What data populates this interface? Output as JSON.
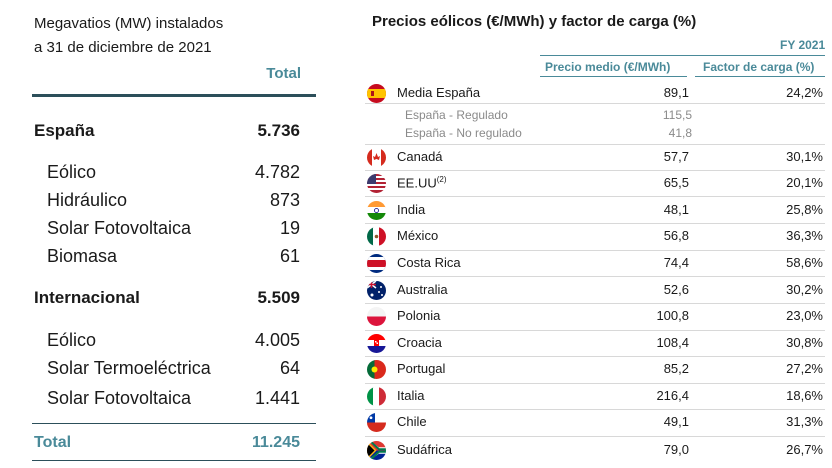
{
  "left_table": {
    "title_line1": "Megavatios (MW) instalados",
    "title_line2": "a 31 de diciembre de 2021",
    "column_header": "Total",
    "rows": [
      {
        "label": "España",
        "value": "5.736",
        "bold": true
      },
      {
        "label": "Eólico",
        "value": "4.782"
      },
      {
        "label": "Hidráulico",
        "value": "873"
      },
      {
        "label": "Solar Fotovoltaica",
        "value": "19"
      },
      {
        "label": "Biomasa",
        "value": "61"
      },
      {
        "label": "Internacional",
        "value": "5.509",
        "bold": true
      },
      {
        "label": "Eólico",
        "value": "4.005"
      },
      {
        "label": "Solar Termoeléctrica",
        "value": "64"
      },
      {
        "label": "Solar Fotovoltaica",
        "value": "1.441"
      }
    ],
    "total_label": "Total",
    "total_value": "11.245"
  },
  "right_table": {
    "title": "Precios eólicos (€/MWh) y factor de carga (%)",
    "period": "FY 2021",
    "col_price": "Precio medio (€/MWh)",
    "col_load": "Factor de carga (%)",
    "spain": {
      "name": "Media España",
      "price": "89,1",
      "load": "24,2%"
    },
    "spain_sub": [
      {
        "name": "España - Regulado",
        "price": "115,5"
      },
      {
        "name": "España - No regulado",
        "price": "41,8"
      }
    ],
    "countries": [
      {
        "name": "Canadá",
        "price": "57,7",
        "load": "30,1%",
        "flag": "canada-flag-icon"
      },
      {
        "name": "EE.UU",
        "sup": "(2)",
        "price": "65,5",
        "load": "20,1%",
        "flag": "usa-flag-icon"
      },
      {
        "name": "India",
        "price": "48,1",
        "load": "25,8%",
        "flag": "india-flag-icon"
      },
      {
        "name": "México",
        "price": "56,8",
        "load": "36,3%",
        "flag": "mexico-flag-icon"
      },
      {
        "name": "Costa Rica",
        "price": "74,4",
        "load": "58,6%",
        "flag": "costa-rica-flag-icon"
      },
      {
        "name": "Australia",
        "price": "52,6",
        "load": "30,2%",
        "flag": "australia-flag-icon"
      },
      {
        "name": "Polonia",
        "price": "100,8",
        "load": "23,0%",
        "flag": "poland-flag-icon"
      },
      {
        "name": "Croacia",
        "price": "108,4",
        "load": "30,8%",
        "flag": "croatia-flag-icon"
      },
      {
        "name": "Portugal",
        "price": "85,2",
        "load": "27,2%",
        "flag": "portugal-flag-icon"
      },
      {
        "name": "Italia",
        "price": "216,4",
        "load": "18,6%",
        "flag": "italy-flag-icon"
      },
      {
        "name": "Chile",
        "price": "49,1",
        "load": "31,3%",
        "flag": "chile-flag-icon"
      },
      {
        "name": "Sudáfrica",
        "price": "79,0",
        "load": "26,7%",
        "flag": "south-africa-flag-icon"
      }
    ]
  },
  "colors": {
    "accent": "#4a8a99",
    "rule": "#2c4f5a"
  }
}
